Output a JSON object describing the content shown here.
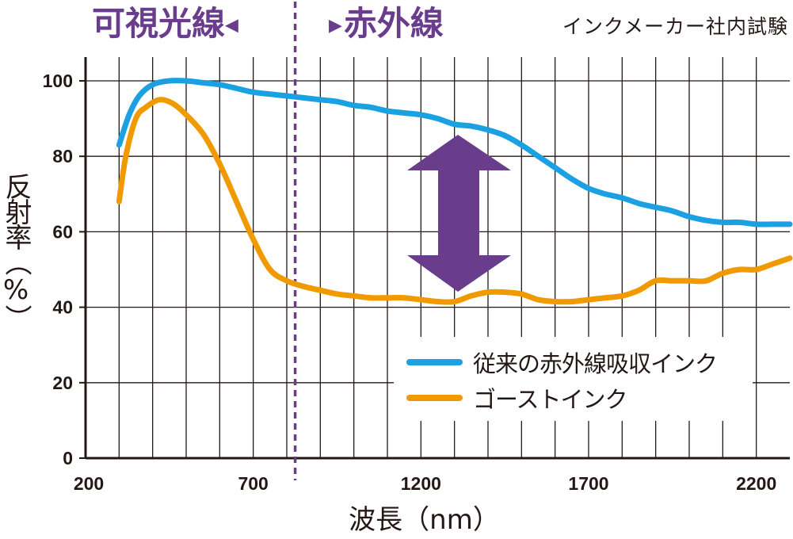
{
  "header": {
    "region_visible": "可視光線",
    "region_ir": "赤外線",
    "source_note": "インクメーカー社内試験"
  },
  "chart_data": {
    "type": "line",
    "xlabel": "波長（nm）",
    "ylabel": "反射率（%）",
    "xlim": [
      200,
      2300
    ],
    "ylim": [
      0,
      100
    ],
    "x_ticks": [
      200,
      700,
      1200,
      1700,
      2200
    ],
    "y_ticks": [
      0,
      20,
      40,
      60,
      80,
      100
    ],
    "grid": true,
    "divider_x": 825,
    "colors": {
      "axis": "#231815",
      "divider": "#6a3d8c",
      "arrow": "#6a3d8c"
    },
    "legend_position": "lower-right",
    "series": [
      {
        "name": "従来の赤外線吸収インク",
        "color": "#1ba1e2",
        "x": [
          300,
          330,
          360,
          400,
          450,
          500,
          550,
          600,
          650,
          700,
          750,
          800,
          850,
          900,
          950,
          1000,
          1050,
          1100,
          1150,
          1200,
          1250,
          1300,
          1350,
          1400,
          1450,
          1500,
          1550,
          1600,
          1650,
          1700,
          1750,
          1800,
          1850,
          1900,
          1950,
          2000,
          2050,
          2100,
          2150,
          2200,
          2250,
          2300
        ],
        "y": [
          83,
          91,
          96,
          99,
          100,
          100,
          99.5,
          99,
          98,
          97,
          96.5,
          96,
          95.5,
          95,
          94.5,
          93.5,
          93,
          92,
          91.5,
          91,
          90,
          88.5,
          88,
          87,
          85.5,
          83,
          80,
          77,
          74,
          71.5,
          70,
          69,
          67.5,
          66.5,
          65.5,
          64,
          63,
          62.5,
          62.5,
          62,
          62,
          62
        ]
      },
      {
        "name": "ゴーストインク",
        "color": "#f09a00",
        "x": [
          300,
          320,
          350,
          380,
          420,
          460,
          500,
          550,
          600,
          650,
          700,
          750,
          800,
          850,
          900,
          950,
          1000,
          1050,
          1100,
          1150,
          1200,
          1250,
          1300,
          1350,
          1400,
          1450,
          1500,
          1550,
          1600,
          1650,
          1700,
          1750,
          1800,
          1850,
          1900,
          1950,
          2000,
          2050,
          2100,
          2150,
          2200,
          2250,
          2300
        ],
        "y": [
          68,
          80,
          90,
          93,
          95,
          94,
          91,
          86,
          78,
          68,
          58,
          50,
          47,
          45.5,
          44.5,
          43.5,
          43,
          42.5,
          42.5,
          42.5,
          42,
          41.5,
          41.5,
          43,
          44,
          44,
          43.5,
          42,
          41.5,
          41.5,
          42,
          42.5,
          43,
          44.5,
          47,
          47,
          47,
          47,
          49,
          50,
          50,
          51.5,
          53
        ]
      }
    ]
  }
}
